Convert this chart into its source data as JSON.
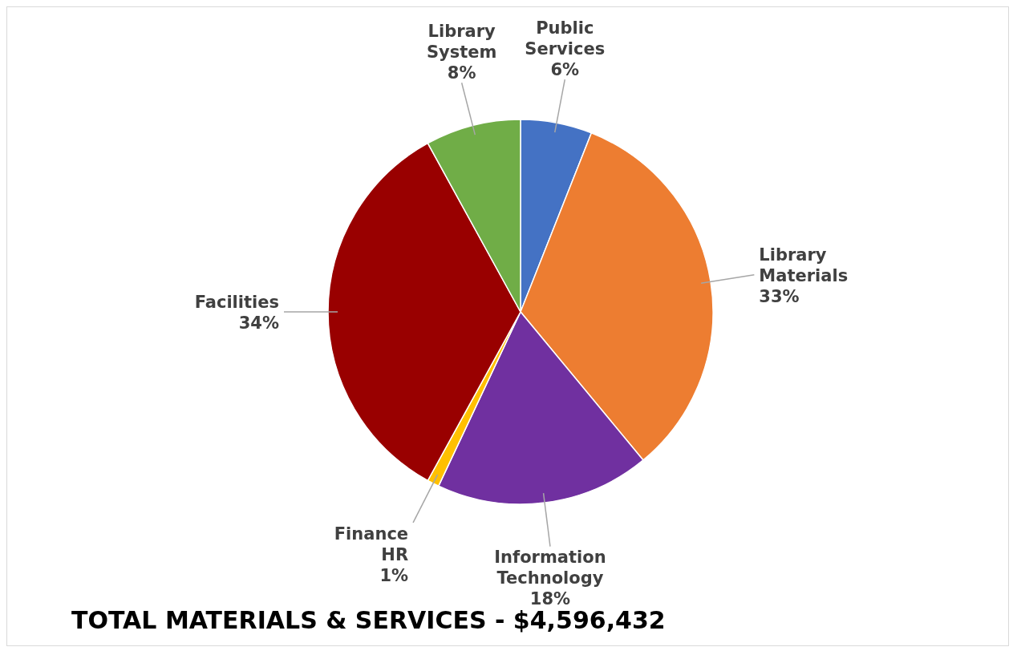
{
  "chart_data": {
    "type": "pie",
    "title": "TOTAL MATERIALS & SERVICES - $4,596,432",
    "categories": [
      "Public Services",
      "Library Materials",
      "Information Technology",
      "Finance HR",
      "Facilities",
      "Library System"
    ],
    "values": [
      6,
      33,
      18,
      1,
      34,
      8
    ],
    "value_labels": [
      "6%",
      "33%",
      "18%",
      "1%",
      "34%",
      "8%"
    ],
    "colors": [
      "#4472c4",
      "#ed7d31",
      "#7030a0",
      "#ffc000",
      "#990000",
      "#70ad47"
    ]
  }
}
